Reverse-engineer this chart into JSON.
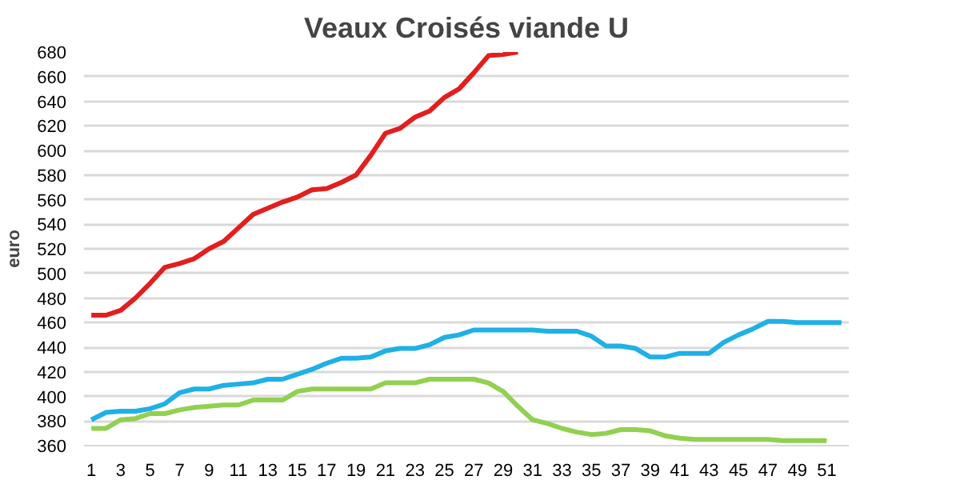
{
  "chart_data": {
    "type": "line",
    "title": "Veaux Croisés viande U",
    "ylabel": "euro",
    "xlim": [
      0.5,
      52.5
    ],
    "xticks": [
      1,
      3,
      5,
      7,
      9,
      11,
      13,
      15,
      17,
      19,
      21,
      23,
      25,
      27,
      29,
      31,
      33,
      35,
      37,
      39,
      41,
      43,
      45,
      47,
      49,
      51
    ],
    "ylim": [
      360,
      680
    ],
    "yticks": [
      360,
      380,
      400,
      420,
      440,
      460,
      480,
      500,
      520,
      540,
      560,
      580,
      600,
      620,
      640,
      660,
      680
    ],
    "grid": "y",
    "marker": "none",
    "line_style": "solid",
    "series": [
      {
        "color": "#92d050",
        "x": [
          1,
          2,
          3,
          4,
          5,
          6,
          7,
          8,
          9,
          10,
          11,
          12,
          13,
          14,
          15,
          16,
          17,
          18,
          19,
          20,
          21,
          22,
          23,
          24,
          25,
          26,
          27,
          28,
          29,
          30,
          31,
          32,
          33,
          34,
          35,
          36,
          37,
          38,
          39,
          40,
          41,
          42,
          43,
          44,
          45,
          46,
          47,
          48,
          49,
          50,
          51
        ],
        "values": [
          374,
          374,
          381,
          382,
          386,
          386,
          389,
          391,
          392,
          393,
          393,
          397,
          397,
          397,
          404,
          406,
          406,
          406,
          406,
          406,
          411,
          411,
          411,
          414,
          414,
          414,
          414,
          411,
          404,
          392,
          381,
          378,
          374,
          371,
          369,
          370,
          373,
          373,
          372,
          368,
          366,
          365,
          365,
          365,
          365,
          365,
          365,
          364,
          364,
          364,
          364
        ]
      },
      {
        "color": "#1fb0e6",
        "x": [
          1,
          2,
          3,
          4,
          5,
          6,
          7,
          8,
          9,
          10,
          11,
          12,
          13,
          14,
          15,
          16,
          17,
          18,
          19,
          20,
          21,
          22,
          23,
          24,
          25,
          26,
          27,
          28,
          29,
          30,
          31,
          32,
          33,
          34,
          35,
          36,
          37,
          38,
          39,
          40,
          41,
          42,
          43,
          44,
          45,
          46,
          47,
          48,
          49,
          50,
          51,
          52
        ],
        "values": [
          381,
          387,
          388,
          388,
          390,
          394,
          403,
          406,
          406,
          409,
          410,
          411,
          414,
          414,
          418,
          422,
          427,
          431,
          431,
          432,
          437,
          439,
          439,
          442,
          448,
          450,
          454,
          454,
          454,
          454,
          454,
          453,
          453,
          453,
          449,
          441,
          441,
          439,
          432,
          432,
          435,
          435,
          435,
          444,
          450,
          455,
          461,
          461,
          460,
          460,
          460,
          460
        ]
      },
      {
        "color": "#e31e1e",
        "x": [
          1,
          2,
          3,
          4,
          5,
          6,
          7,
          8,
          9,
          10,
          11,
          12,
          13,
          14,
          15,
          16,
          17,
          18,
          19,
          20,
          21,
          22,
          23,
          24,
          25,
          26,
          27,
          28,
          29,
          30
        ],
        "values": [
          466,
          466,
          470,
          480,
          492,
          505,
          508,
          512,
          520,
          526,
          537,
          548,
          553,
          558,
          562,
          568,
          569,
          574,
          580,
          596,
          614,
          618,
          627,
          632,
          643,
          650,
          663,
          677,
          678,
          680
        ]
      }
    ]
  }
}
